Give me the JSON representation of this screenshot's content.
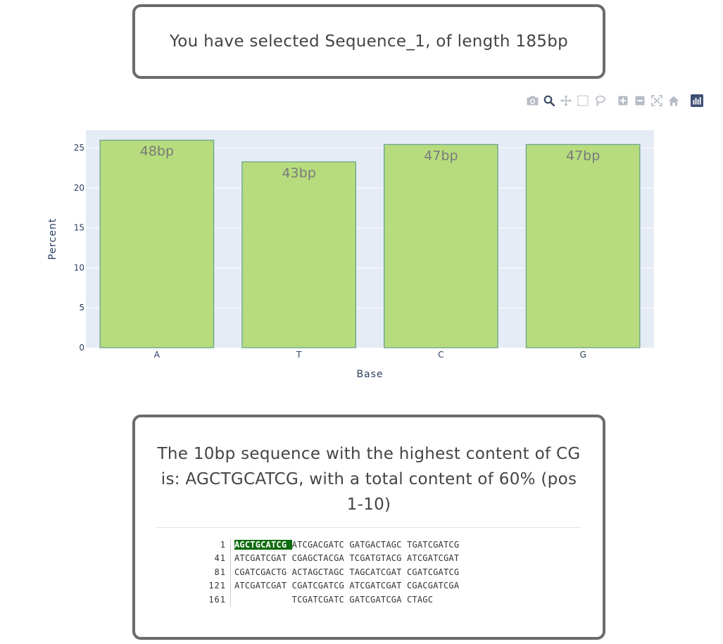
{
  "top_card": {
    "message": "You have selected Sequence_1, of length 185bp"
  },
  "modebar": {
    "buttons": [
      {
        "name": "camera-icon",
        "active": false
      },
      {
        "name": "zoom-icon",
        "active": true
      },
      {
        "name": "pan-icon",
        "active": false
      },
      {
        "name": "box-select-icon",
        "active": false
      },
      {
        "name": "lasso-select-icon",
        "active": false
      },
      {
        "name": "zoom-in-icon",
        "active": false
      },
      {
        "name": "zoom-out-icon",
        "active": false
      },
      {
        "name": "autoscale-icon",
        "active": false
      },
      {
        "name": "reset-axes-icon",
        "active": false
      },
      {
        "name": "plotly-logo-icon",
        "active": false
      }
    ],
    "colors": {
      "inactive": "#b7bdc6",
      "active": "#3b4a5f",
      "logo": "#3f4f75"
    }
  },
  "chart_data": {
    "type": "bar",
    "categories": [
      "A",
      "T",
      "C",
      "G"
    ],
    "values": [
      25.95,
      23.24,
      25.41,
      25.41
    ],
    "bar_labels": [
      "48bp",
      "43bp",
      "47bp",
      "47bp"
    ],
    "xlabel": "Base",
    "ylabel": "Percent",
    "ylim": [
      0,
      27.2
    ],
    "yticks": [
      0,
      5,
      10,
      15,
      20,
      25
    ],
    "grid": true,
    "colors": {
      "bar": "#b7dc7e",
      "bar_edge": "#6aa389",
      "plot_bg": "#e5ecf6"
    }
  },
  "bottom_card": {
    "headline": "The 10bp sequence with the highest content of CG is: AGCTGCATCG, with a total content of 60% (pos 1-10)",
    "highlight_color": "#0e6b0e",
    "sequence_rows": [
      {
        "pos": "1",
        "highlight": "AGCTGCATCG ",
        "rest": "ATCGACGATC GATGACTAGC TGATCGATCG"
      },
      {
        "pos": "41",
        "highlight": "",
        "rest": "ATCGATCGAT CGAGCTACGA TCGATGTACG ATCGATCGAT"
      },
      {
        "pos": "81",
        "highlight": "",
        "rest": "CGATCGACTG ACTAGCTAGC TAGCATCGAT CGATCGATCG"
      },
      {
        "pos": "121",
        "highlight": "",
        "rest": "ATCGATCGAT CGATCGATCG ATCGATCGAT CGACGATCGA"
      },
      {
        "pos": "161",
        "highlight": "",
        "rest": "           TCGATCGATC GATCGATCGA CTAGC"
      }
    ]
  }
}
